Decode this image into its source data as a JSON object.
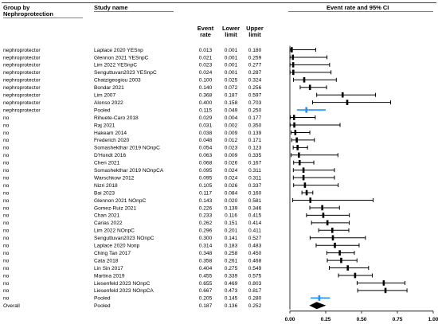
{
  "headers": {
    "group_by": "Group by",
    "group_var": "Nephroprotection",
    "study_name": "Study name",
    "ci_title": "Event rate and 95% CI",
    "event_rate": [
      "Event",
      "rate"
    ],
    "lower_limit": [
      "Lower",
      "limit"
    ],
    "upper_limit": [
      "Upper",
      "limit"
    ]
  },
  "chart_data": {
    "type": "forest",
    "x_axis": {
      "min": 0.0,
      "max": 1.0,
      "ticks": [
        "0.00",
        "0.25",
        "0.50",
        "0.75",
        "1.00"
      ],
      "tick_values": [
        0,
        0.25,
        0.5,
        0.75,
        1.0
      ]
    },
    "colors": {
      "study": "#000000",
      "pooled_subgroup": "#1e90ff",
      "overall": "#000000"
    },
    "rows": [
      {
        "group": "nephroprotector",
        "study": "Laplace 2020  YESnp",
        "rate": "0.013",
        "lower": "0.001",
        "upper": "0.180",
        "kind": "study"
      },
      {
        "group": "nephroprotector",
        "study": "Glennon 2021 YESnpC",
        "rate": "0.021",
        "lower": "0.001",
        "upper": "0.259",
        "kind": "study"
      },
      {
        "group": "nephroprotector",
        "study": "Lim 2022 YESnpC",
        "rate": "0.023",
        "lower": "0.001",
        "upper": "0.277",
        "kind": "study"
      },
      {
        "group": "nephroprotector",
        "study": "Senguttuvan2023 YESnpC",
        "rate": "0.024",
        "lower": "0.001",
        "upper": "0.287",
        "kind": "study"
      },
      {
        "group": "nephroprotector",
        "study": "Chatzigeogiou 2003",
        "rate": "0.100",
        "lower": "0.025",
        "upper": "0.324",
        "kind": "study"
      },
      {
        "group": "nephroprotector",
        "study": "Bondar 2021",
        "rate": "0.140",
        "lower": "0.072",
        "upper": "0.256",
        "kind": "study"
      },
      {
        "group": "nephroprotector",
        "study": "Lim 2007",
        "rate": "0.368",
        "lower": "0.187",
        "upper": "0.597",
        "kind": "study"
      },
      {
        "group": "nephroprotector",
        "study": "Alonso 2022",
        "rate": "0.400",
        "lower": "0.158",
        "upper": "0.703",
        "kind": "study"
      },
      {
        "group": "nephroprotector",
        "study": "Pooled",
        "rate": "0.115",
        "lower": "0.049",
        "upper": "0.250",
        "kind": "pooled"
      },
      {
        "group": "no",
        "study": "Rihuete-Caro 2018",
        "rate": "0.029",
        "lower": "0.004",
        "upper": "0.177",
        "kind": "study"
      },
      {
        "group": "no",
        "study": "Raj 2021",
        "rate": "0.031",
        "lower": "0.002",
        "upper": "0.350",
        "kind": "study"
      },
      {
        "group": "no",
        "study": "Hakeam 2014",
        "rate": "0.038",
        "lower": "0.009",
        "upper": "0.139",
        "kind": "study"
      },
      {
        "group": "no",
        "study": "Frederich 2020",
        "rate": "0.048",
        "lower": "0.012",
        "upper": "0.171",
        "kind": "study"
      },
      {
        "group": "no",
        "study": "Somashekthar 2019 NOnpC",
        "rate": "0.054",
        "lower": "0.023",
        "upper": "0.123",
        "kind": "study"
      },
      {
        "group": "no",
        "study": "D'Hondt 2016",
        "rate": "0.063",
        "lower": "0.009",
        "upper": "0.335",
        "kind": "study"
      },
      {
        "group": "no",
        "study": "Chen 2021",
        "rate": "0.068",
        "lower": "0.026",
        "upper": "0.167",
        "kind": "study"
      },
      {
        "group": "no",
        "study": "Somashekthar 2019 NOnpCA",
        "rate": "0.095",
        "lower": "0.024",
        "upper": "0.311",
        "kind": "study"
      },
      {
        "group": "no",
        "study": "Warschkow 2012",
        "rate": "0.095",
        "lower": "0.024",
        "upper": "0.311",
        "kind": "study"
      },
      {
        "group": "no",
        "study": "Nizri 2018",
        "rate": "0.105",
        "lower": "0.026",
        "upper": "0.337",
        "kind": "study"
      },
      {
        "group": "no",
        "study": "Bai 2023",
        "rate": "0.117",
        "lower": "0.084",
        "upper": "0.160",
        "kind": "study"
      },
      {
        "group": "no",
        "study": "Glennon 2021 NOnpC",
        "rate": "0.143",
        "lower": "0.020",
        "upper": "0.581",
        "kind": "study"
      },
      {
        "group": "no",
        "study": "Gomez-Ruiz 2021",
        "rate": "0.226",
        "lower": "0.139",
        "upper": "0.346",
        "kind": "study"
      },
      {
        "group": "no",
        "study": " Chan 2021",
        "rate": "0.233",
        "lower": "0.116",
        "upper": "0.415",
        "kind": "study"
      },
      {
        "group": "no",
        "study": "Carias 2022",
        "rate": "0.262",
        "lower": "0.151",
        "upper": "0.414",
        "kind": "study"
      },
      {
        "group": "no",
        "study": "Lim 2022 NOnpC",
        "rate": "0.296",
        "lower": "0.201",
        "upper": "0.411",
        "kind": "study"
      },
      {
        "group": "no",
        "study": "Senguttuvan2023 NOnpC",
        "rate": "0.300",
        "lower": "0.141",
        "upper": "0.527",
        "kind": "study"
      },
      {
        "group": "no",
        "study": "Laplace 2020 Nonp",
        "rate": "0.314",
        "lower": "0.183",
        "upper": "0.483",
        "kind": "study"
      },
      {
        "group": "no",
        "study": "Ching Tan 2017",
        "rate": "0.348",
        "lower": "0.258",
        "upper": "0.450",
        "kind": "study"
      },
      {
        "group": "no",
        "study": "Cata 2018",
        "rate": "0.358",
        "lower": "0.261",
        "upper": "0.468",
        "kind": "study"
      },
      {
        "group": "no",
        "study": "Lin Sin 2017",
        "rate": "0.404",
        "lower": "0.275",
        "upper": "0.549",
        "kind": "study"
      },
      {
        "group": "no",
        "study": "Martina 2019",
        "rate": "0.455",
        "lower": "0.339",
        "upper": "0.575",
        "kind": "study"
      },
      {
        "group": "no",
        "study": "Liesenfeld 2023 NOnpC",
        "rate": "0.655",
        "lower": "0.469",
        "upper": "0.803",
        "kind": "study"
      },
      {
        "group": "no",
        "study": "Liesenfeld 2023 NOnpCA",
        "rate": "0.667",
        "lower": "0.473",
        "upper": "0.817",
        "kind": "study"
      },
      {
        "group": "no",
        "study": "Pooled",
        "rate": "0.205",
        "lower": "0.145",
        "upper": "0.280",
        "kind": "pooled"
      },
      {
        "group": "Overall",
        "study": "Pooled",
        "rate": "0.187",
        "lower": "0.136",
        "upper": "0.252",
        "kind": "overall"
      }
    ]
  }
}
